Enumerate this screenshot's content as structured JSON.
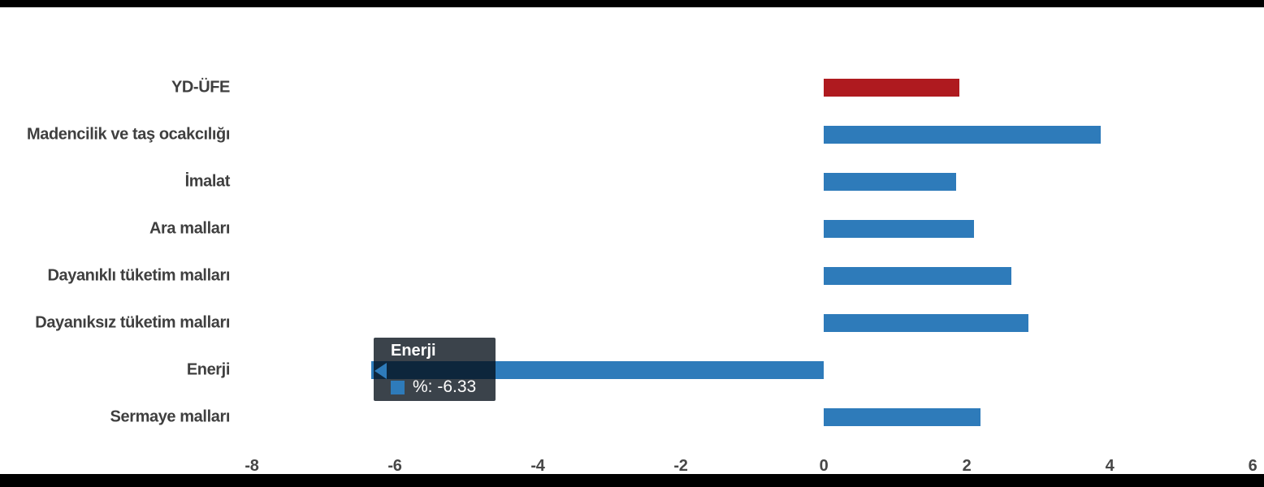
{
  "colors": {
    "bar_blue": "#2e7bba",
    "bar_red": "#af1a1f",
    "label_gray": "#3f3f3f",
    "tooltip_bg": "rgba(4,14,24,0.78)",
    "tooltip_text": "#ffffff"
  },
  "chart_data": {
    "type": "bar",
    "orientation": "horizontal",
    "title": "",
    "xlabel": "",
    "ylabel": "",
    "categories": [
      "YD-ÜFE",
      "Madencilik ve taş ocakcılığı",
      "İmalat",
      "Ara malları",
      "Dayanıklı tüketim malları",
      "Dayanıksız tüketim malları",
      "Enerji",
      "Sermaye malları"
    ],
    "values": [
      1.9,
      3.88,
      1.85,
      2.1,
      2.63,
      2.86,
      -6.33,
      2.19
    ],
    "bar_colors": [
      "#af1a1f",
      "#2e7bba",
      "#2e7bba",
      "#2e7bba",
      "#2e7bba",
      "#2e7bba",
      "#2e7bba",
      "#2e7bba"
    ],
    "xlim": [
      -8,
      6
    ],
    "x_ticks": [
      -8,
      -6,
      -4,
      -2,
      0,
      2,
      4,
      6
    ],
    "grid": "off",
    "legend": "none"
  },
  "tooltip": {
    "title": "Enerji",
    "series_label": "%",
    "value": "-6.33",
    "swatch_color": "#2e7bba"
  }
}
